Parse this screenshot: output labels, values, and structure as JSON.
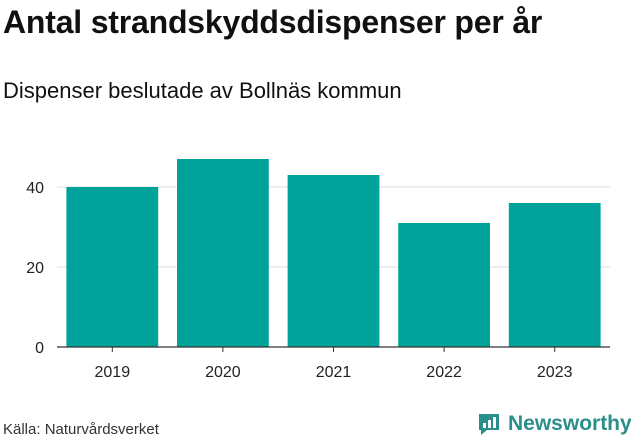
{
  "title": "Antal strandskyddsdispenser per år",
  "subtitle": "Dispenser beslutade av Bollnäs kommun",
  "source": "Källa: Naturvårdsverket",
  "brand": {
    "name": "Newsworthy",
    "logo_icon": "newsworthy-logo-icon",
    "color": "#2a8f8a"
  },
  "chart_data": {
    "type": "bar",
    "title": "Antal strandskyddsdispenser per år",
    "subtitle": "Dispenser beslutade av Bollnäs kommun",
    "categories": [
      "2019",
      "2020",
      "2021",
      "2022",
      "2023"
    ],
    "values": [
      40,
      47,
      43,
      31,
      36
    ],
    "yticks": [
      0,
      20,
      40
    ],
    "ylim": [
      0,
      50
    ],
    "xlabel": "",
    "ylabel": "",
    "grid": true,
    "bar_color": "#00a39a",
    "grid_color": "#dddddd"
  }
}
